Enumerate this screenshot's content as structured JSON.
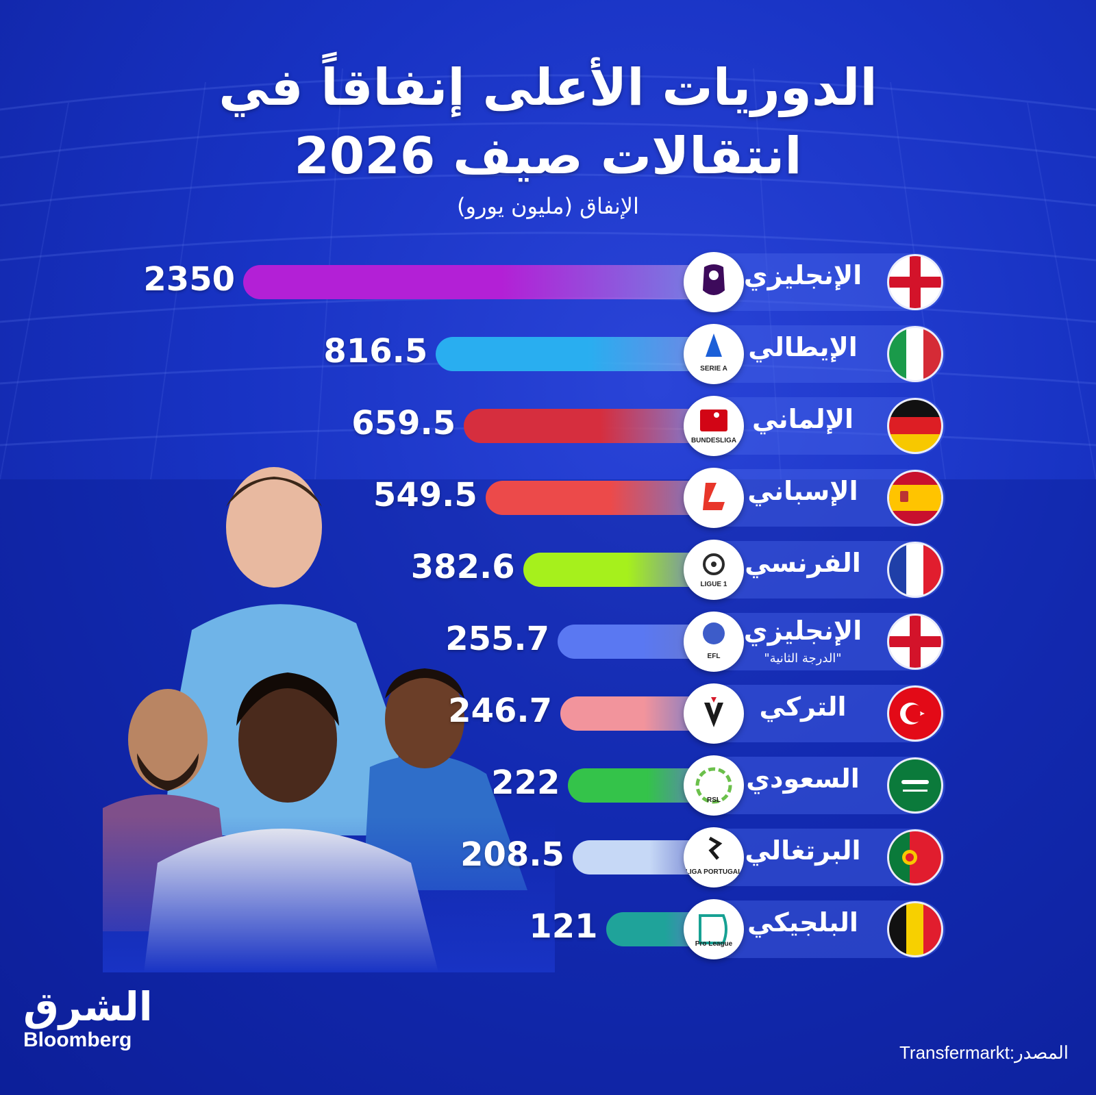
{
  "header": {
    "title_line1": "الدوريات الأعلى إنفاقاً في",
    "title_line2": "انتقالات صيف 2026",
    "subtitle": "الإنفاق (مليون يورو)"
  },
  "chart_data": {
    "type": "bar",
    "orientation": "horizontal",
    "title": "الدوريات الأعلى إنفاقاً في انتقالات صيف 2026",
    "subtitle": "الإنفاق (مليون يورو)",
    "categories": [
      "الإنجليزي",
      "الإيطالي",
      "الإلماني",
      "الإسباني",
      "الفرنسي",
      "الإنجليزي",
      "التركي",
      "السعودي",
      "البرتغالي",
      "البلجيكي"
    ],
    "notes": [
      "",
      "",
      "",
      "",
      "",
      "\"الدرجة الثانية\"",
      "",
      "",
      "",
      ""
    ],
    "values": [
      2350,
      816.5,
      659.5,
      549.5,
      382.6,
      255.7,
      246.7,
      222,
      208.5,
      121
    ],
    "value_labels": [
      "2350",
      "816.5",
      "659.5",
      "549.5",
      "382.6",
      "255.7",
      "246.7",
      "222",
      "208.5",
      "121"
    ],
    "bar_colors": [
      "#b320d6",
      "#29aef0",
      "#d62e3e",
      "#ec4a4a",
      "#a6f01c",
      "#5a78f2",
      "#f2949c",
      "#34c34a",
      "#c6d8f6",
      "#1fa39a"
    ],
    "flags": [
      "england",
      "italy",
      "germany",
      "spain",
      "france",
      "england",
      "turkey",
      "saudi",
      "portugal",
      "belgium"
    ],
    "league_logos": [
      "premier-league-logo",
      "serie-a-logo",
      "bundesliga-logo",
      "laliga-logo",
      "ligue-1-logo",
      "efl-logo",
      "super-lig-logo",
      "rsl-logo",
      "liga-portugal-logo",
      "pro-league-logo"
    ],
    "logo_texts": [
      "",
      "SERIE A",
      "BUNDESLIGA",
      "",
      "LIGUE 1",
      "EFL",
      "",
      "RSL",
      "LIGA PORTUGAL",
      "Pro League"
    ],
    "xlim": [
      0,
      2350
    ]
  },
  "branding": {
    "logo_ar": "الشرق",
    "logo_en": "Bloomberg"
  },
  "source": {
    "label": "المصدر:",
    "value": "Transfermarkt"
  }
}
